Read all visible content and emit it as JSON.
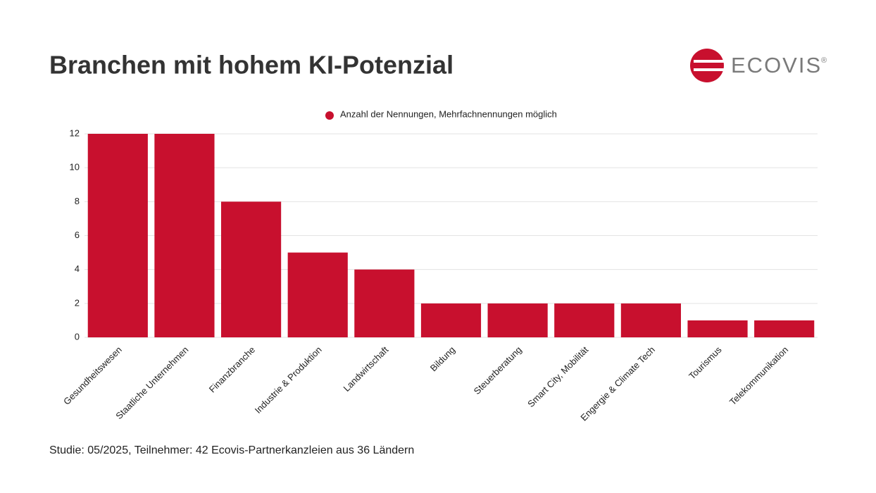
{
  "brand": {
    "name": "ECOVIS",
    "mark": "®"
  },
  "chart_data": {
    "type": "bar",
    "title": "Branchen mit hohem KI-Potenzial",
    "categories": [
      "Gesundheitswesen",
      "Staatliche Unternehmen",
      "Finanzbranche",
      "Industrie & Produktion",
      "Landwirtschaft",
      "Bildung",
      "Steuerberatung",
      "Smart City, Mobilität",
      "Engergie & Climate Tech",
      "Tourismus",
      "Telekommunikation"
    ],
    "series": [
      {
        "name": "Anzahl der Nennungen, Mehrfachnennungen möglich",
        "color": "#c8102e",
        "values": [
          12,
          12,
          8,
          5,
          4,
          2,
          2,
          2,
          2,
          1,
          1
        ]
      }
    ],
    "ylim": [
      0,
      12
    ],
    "yticks": [
      0,
      2,
      4,
      6,
      8,
      10,
      12
    ],
    "grid": true,
    "legend": "top",
    "footnote": "Studie: 05/2025, Teilnehmer: 42 Ecovis-Partnerkanzleien aus 36 Ländern"
  }
}
